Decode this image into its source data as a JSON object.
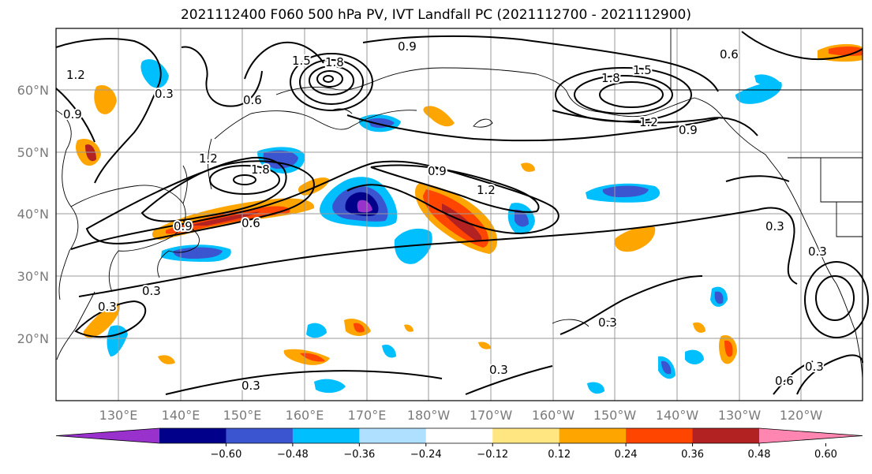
{
  "title": "2021112400 F060 500 hPa PV, IVT Landfall PC (2021112700 - 2021112900)",
  "axes": {
    "lat_labels": [
      "60°N",
      "50°N",
      "40°N",
      "30°N",
      "20°N"
    ],
    "lon_labels": [
      "130°E",
      "140°E",
      "150°E",
      "160°E",
      "170°E",
      "180°W",
      "170°W",
      "160°W",
      "150°W",
      "140°W",
      "130°W",
      "120°W"
    ]
  },
  "contour_labels": [
    "1.2",
    "0.9",
    "0.6",
    "0.3",
    "1.5",
    "1.8",
    "0.9",
    "0.6",
    "1.5",
    "1.8",
    "1.2",
    "0.9",
    "1.2",
    "1.8",
    "0.9",
    "1.2",
    "0.9",
    "0.6",
    "0.3",
    "0.3",
    "0.3",
    "0.3",
    "0.3",
    "0.6",
    "0.3",
    "0.3",
    "0.3"
  ],
  "colorbar": {
    "ticks": [
      "−0.60",
      "−0.48",
      "−0.36",
      "−0.24",
      "−0.12",
      "0.12",
      "0.24",
      "0.36",
      "0.48",
      "0.60"
    ],
    "colors": [
      "#9932cc",
      "#00008b",
      "#3a55cf",
      "#00bfff",
      "#b0e0ff",
      "#ffffff",
      "#ffe680",
      "#ffa500",
      "#ff4500",
      "#b22222",
      "#ff86b0"
    ]
  }
}
